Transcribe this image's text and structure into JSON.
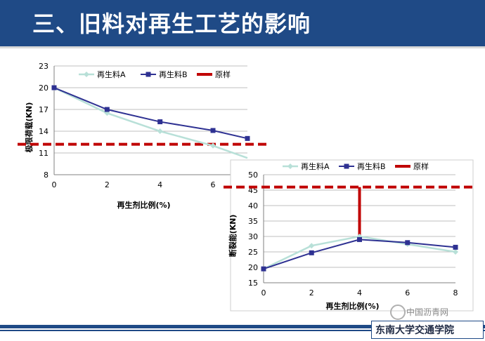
{
  "header": {
    "title": "三、旧料对再生工艺的影响"
  },
  "footer": {
    "organization": "东南大学交通学院",
    "watermark": "中国沥青网"
  },
  "colors": {
    "header_bg": "#1f4a86",
    "series_a": "#b8e0d8",
    "series_b": "#2e3192",
    "original": "#c00000"
  },
  "chart_data": [
    {
      "type": "line",
      "title": "",
      "xlabel": "再生剂比例(%)",
      "ylabel": "极限荷载(KN)",
      "xlim": [
        0,
        7.3
      ],
      "ylim": [
        8,
        23
      ],
      "xticks": [
        0,
        2,
        4,
        6
      ],
      "yticks": [
        8,
        11,
        14,
        17,
        20,
        23
      ],
      "grid": "horizontal",
      "legend_position": "top",
      "series": [
        {
          "name": "再生料A",
          "x": [
            0,
            2,
            4,
            6,
            7.3
          ],
          "values": [
            20,
            16.5,
            14,
            12,
            10.3
          ]
        },
        {
          "name": "再生料B",
          "x": [
            0,
            2,
            4,
            6,
            8
          ],
          "values": [
            20,
            17,
            15.3,
            14.1,
            13
          ]
        },
        {
          "name": "原样",
          "reference_value": 12.2
        }
      ]
    },
    {
      "type": "line",
      "title": "",
      "xlabel": "再生剂比例(%)",
      "ylabel": "断裂能(KN)",
      "xlim": [
        0,
        8
      ],
      "ylim": [
        15,
        50
      ],
      "xticks": [
        0,
        2,
        4,
        6,
        8
      ],
      "yticks": [
        15,
        20,
        25,
        30,
        35,
        40,
        45,
        50
      ],
      "grid": "horizontal",
      "legend_position": "top",
      "series": [
        {
          "name": "再生料A",
          "x": [
            0,
            2,
            4,
            6,
            8
          ],
          "values": [
            19.5,
            27,
            30,
            27.5,
            25
          ]
        },
        {
          "name": "再生料B",
          "x": [
            0,
            2,
            4,
            6,
            8
          ],
          "values": [
            19.5,
            24.7,
            29,
            28,
            26.5
          ]
        },
        {
          "name": "原样",
          "reference_value": 46,
          "drop_at_x": 4
        }
      ]
    }
  ]
}
